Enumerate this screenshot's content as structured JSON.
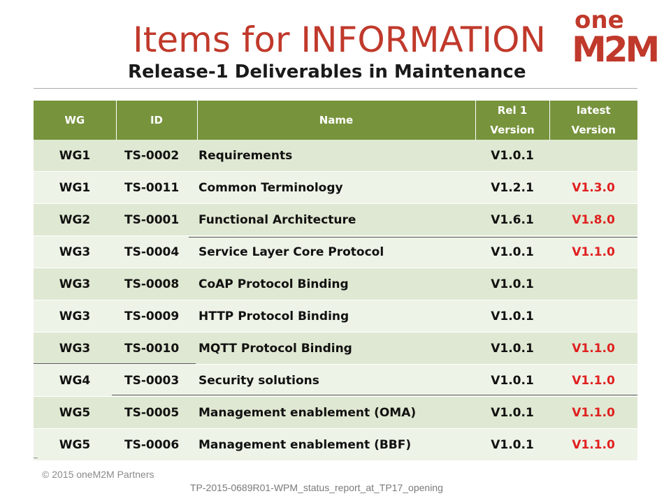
{
  "slide": {
    "title": "Items for INFORMATION",
    "subtitle": "Release-1 Deliverables in Maintenance",
    "logo_text_top": "one",
    "logo_text_bottom": "M2M",
    "brand_color": "#c0392b"
  },
  "table": {
    "headers": {
      "wg": "WG",
      "id": "ID",
      "name": "Name",
      "rel1_line1": "Rel 1",
      "rel1_line2": "Version",
      "latest_line1": "latest",
      "latest_line2": "Version"
    },
    "header_color": "#77933c",
    "highlight_color": "#e02020",
    "rows": [
      {
        "wg": "WG1",
        "id": "TS-0002",
        "name": "Requirements",
        "rel1": "V1.0.1",
        "latest": ""
      },
      {
        "wg": "WG1",
        "id": "TS-0011",
        "name": "Common Terminology",
        "rel1": "V1.2.1",
        "latest": "V1.3.0"
      },
      {
        "wg": "WG2",
        "id": "TS-0001",
        "name": "Functional Architecture",
        "rel1": "V1.6.1",
        "latest": "V1.8.0"
      },
      {
        "wg": "WG3",
        "id": "TS-0004",
        "name": "Service Layer Core Protocol",
        "rel1": "V1.0.1",
        "latest": "V1.1.0"
      },
      {
        "wg": "WG3",
        "id": "TS-0008",
        "name": "CoAP Protocol Binding",
        "rel1": "V1.0.1",
        "latest": ""
      },
      {
        "wg": "WG3",
        "id": "TS-0009",
        "name": "HTTP Protocol Binding",
        "rel1": "V1.0.1",
        "latest": ""
      },
      {
        "wg": "WG3",
        "id": "TS-0010",
        "name": "MQTT Protocol Binding",
        "rel1": "V1.0.1",
        "latest": "V1.1.0"
      },
      {
        "wg": "WG4",
        "id": "TS-0003",
        "name": "Security solutions",
        "rel1": "V1.0.1",
        "latest": "V1.1.0"
      },
      {
        "wg": "WG5",
        "id": "TS-0005",
        "name": "Management enablement (OMA)",
        "rel1": "V1.0.1",
        "latest": "V1.1.0"
      },
      {
        "wg": "WG5",
        "id": "TS-0006",
        "name": "Management enablement (BBF)",
        "rel1": "V1.0.1",
        "latest": "V1.1.0"
      }
    ]
  },
  "footer": {
    "copyright": "© 2015 oneM2M Partners",
    "document": "TP-2015-0689R01-WPM_status_report_at_TP17_opening"
  }
}
